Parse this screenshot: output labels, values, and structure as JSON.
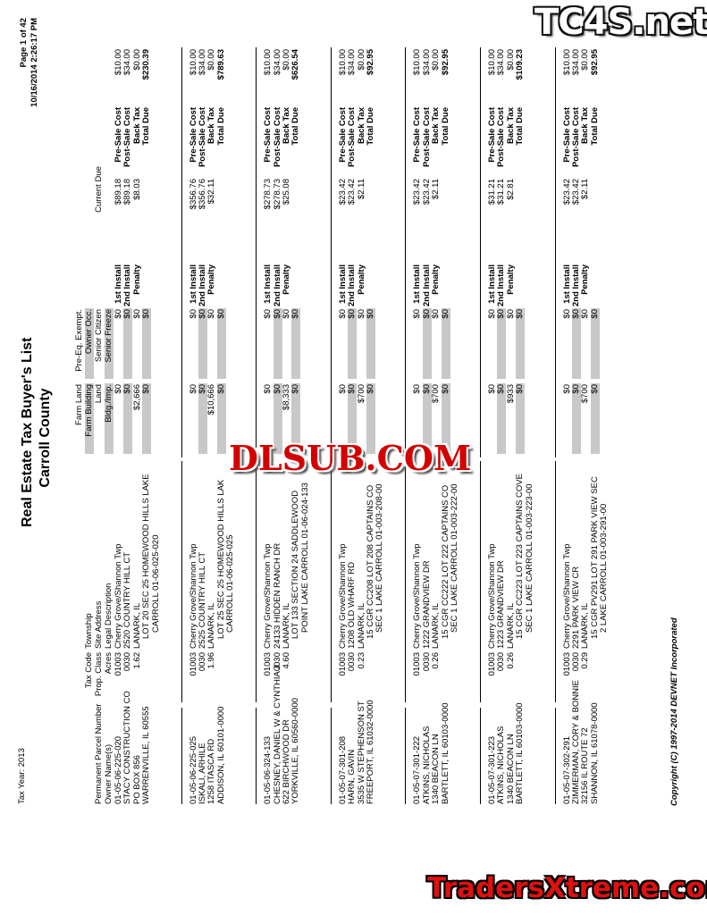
{
  "header": {
    "tax_year": "Tax Year: 2013",
    "title": "Real Estate Tax Buyer's List",
    "county": "Carroll County",
    "page": "Page 1 of 42",
    "timestamp": "10/16/2014 2:26:17 PM"
  },
  "columns": {
    "parcel": "Permanent Parcel Number",
    "owner": "Owner Name(s)",
    "tax_code": "Tax Code",
    "township": "Township",
    "prop_class": "Prop. Class",
    "site_address": "Site Address",
    "acres": "Acres",
    "legal": "Legal Description",
    "farm_land": "Farm Land",
    "farm_building": "Farm Building",
    "land": "Land",
    "bldg": "Bldg./Imp.",
    "pre_eq": "Pre-Eq. Exempt.",
    "owner_occ": "Owner Occ.",
    "senior_citizen": "Senior Citizen",
    "senior_freeze": "Senior Freeze",
    "current_due": "Current Due"
  },
  "labels": {
    "install1": "1st Install",
    "install2": "2nd Install",
    "penalty": "Penalty",
    "pre_sale": "Pre-Sale Cost",
    "post_sale": "Post-Sale Cost",
    "back_tax": "Back Tax",
    "total_due": "Total Due"
  },
  "records": [
    {
      "parcel": "01-05-06-225-020",
      "owner": [
        "STACY CONSTRUCTION CO",
        "PO BOX 856",
        "WARRENVILLE, IL 60555"
      ],
      "tax_code": "01003",
      "township": "Cherry Grove/Shannon Twp",
      "prop_class": "0030",
      "site_address": "2520 COUNTRY HILL CT",
      "acres": "1.62",
      "city": "LANARK, IL",
      "legal": [
        "LOT 20 SEC 25 HOMEWOOD HILLS LAKE",
        "CARROLL 01-06-025-020"
      ],
      "farm_land": "$0",
      "farm_building": "$0",
      "land": "$2,666",
      "bldg": "$0",
      "pre_eq": "$0",
      "owner_occ": "$0",
      "senior_citizen": "$0",
      "senior_freeze": "$0",
      "due": [
        "$89.18",
        "$89.18",
        "$8.03"
      ],
      "costs": [
        "$10.00",
        "$34.00",
        "$0.00"
      ],
      "total": "$230.39"
    },
    {
      "parcel": "01-05-06-225-025",
      "owner": [
        "ISKALI, ARHILE",
        "1258 ITASCA RD",
        "ADDISON, IL 60101-0000"
      ],
      "tax_code": "01003",
      "township": "Cherry Grove/Shannon Twp",
      "prop_class": "0030",
      "site_address": "2525 COUNTRY HILL CT",
      "acres": "1.96",
      "city": "LANARK, IL",
      "legal": [
        "LOT 25 SEC 25 HOMEWOOD HILLS LAK",
        "CARROLL 01-06-025-025"
      ],
      "farm_land": "$0",
      "farm_building": "$0",
      "land": "$10,666",
      "bldg": "$0",
      "pre_eq": "$0",
      "owner_occ": "$0",
      "senior_citizen": "$0",
      "senior_freeze": "$0",
      "due": [
        "$356.76",
        "$356.76",
        "$32.11"
      ],
      "costs": [
        "$10.00",
        "$34.00",
        "$0.00"
      ],
      "total": "$789.63"
    },
    {
      "parcel": "01-05-06-324-133",
      "owner": [
        "CHESNEY, DANIEL W & CYNTHIA J",
        "622 BIRCHWOOD DR",
        "YORKVILLE, IL 60560-0000"
      ],
      "tax_code": "01003",
      "township": "Cherry Grove/Shannon Twp",
      "prop_class": "0030",
      "site_address": "24133 HIDDEN RANCH DR",
      "acres": "4.60",
      "city": "LANARK, IL",
      "legal": [
        "LOT 133 SECTION 24 SADDLEWOOD",
        "POINT LAKE CARROLL 01-06-024-133"
      ],
      "farm_land": "$0",
      "farm_building": "$0",
      "land": "$8,333",
      "bldg": "$0",
      "pre_eq": "$0",
      "owner_occ": "$0",
      "senior_citizen": "$0",
      "senior_freeze": "$0",
      "due": [
        "$278.73",
        "$278.73",
        "$25.08"
      ],
      "costs": [
        "$10.00",
        "$34.00",
        "$0.00"
      ],
      "total": "$626.54"
    },
    {
      "parcel": "01-05-07-301-208",
      "owner": [
        "HARN, GAVIN",
        "3535 W STEPHENSON ST",
        "FREEPORT, IL 61032-0000"
      ],
      "tax_code": "01003",
      "township": "Cherry Grove/Shannon Twp",
      "prop_class": "0030",
      "site_address": "1208 OLD WHARF RD",
      "acres": "0.23",
      "city": "LANARK, IL",
      "legal": [
        "15 CGR CC208 LOT 208 CAPTAINS CO",
        "SEC 1 LAKE CARROLL 01-003-208-00"
      ],
      "farm_land": "$0",
      "farm_building": "$0",
      "land": "$700",
      "bldg": "$0",
      "pre_eq": "$0",
      "owner_occ": "$0",
      "senior_citizen": "$0",
      "senior_freeze": "$0",
      "due": [
        "$23.42",
        "$23.42",
        "$2.11"
      ],
      "costs": [
        "$10.00",
        "$34.00",
        "$0.00"
      ],
      "total": "$92.95"
    },
    {
      "parcel": "01-05-07-301-222",
      "owner": [
        "ATKINS, NICHOLAS",
        "1340 BEACON LN",
        "BARTLETT, IL 60103-0000"
      ],
      "tax_code": "01003",
      "township": "Cherry Grove/Shannon Twp",
      "prop_class": "0030",
      "site_address": "1222 GRANDVIEW DR",
      "acres": "0.26",
      "city": "LANARK, IL",
      "legal": [
        "15 CGR CC222 LOT 222 CAPTAINS CO",
        "SEC 1 LAKE CARROLL 01-003-222-00"
      ],
      "farm_land": "$0",
      "farm_building": "$0",
      "land": "$700",
      "bldg": "$0",
      "pre_eq": "$0",
      "owner_occ": "$0",
      "senior_citizen": "$0",
      "senior_freeze": "$0",
      "due": [
        "$23.42",
        "$23.42",
        "$2.11"
      ],
      "costs": [
        "$10.00",
        "$34.00",
        "$0.00"
      ],
      "total": "$92.95"
    },
    {
      "parcel": "01-05-07-301-223",
      "owner": [
        "ATKINS, NICHOLAS",
        "1340 BEACON LN",
        "BARTLETT, IL 60103-0000"
      ],
      "tax_code": "01003",
      "township": "Cherry Grove/Shannon Twp",
      "prop_class": "0030",
      "site_address": "1223 GRANDVIEW DR",
      "acres": "0.26",
      "city": "LANARK, IL",
      "legal": [
        "15 CGR CC223 LOT 223 CAPTAINS COVE",
        "SEC 1 LAKE CARROLL 01-003-223-00"
      ],
      "farm_land": "$0",
      "farm_building": "$0",
      "land": "$933",
      "bldg": "$0",
      "pre_eq": "$0",
      "owner_occ": "$0",
      "senior_citizen": "$0",
      "senior_freeze": "$0",
      "due": [
        "$31.21",
        "$31.21",
        "$2.81"
      ],
      "costs": [
        "$10.00",
        "$34.00",
        "$0.00"
      ],
      "total": "$109.23"
    },
    {
      "parcel": "01-05-07-302-291",
      "owner": [
        "ZIMMERMAN, CORY & BONNIE",
        "32156 IL ROUTE 72",
        "SHANNON, IL 61078-0000"
      ],
      "tax_code": "01003",
      "township": "Cherry Grove/Shannon Twp",
      "prop_class": "0030",
      "site_address": "2291 PARK VIEW CR",
      "acres": "0.29",
      "city": "LANARK, IL",
      "legal": [
        "15 CGR PV291 LOT 291 PARK VIEW SEC",
        "2 LAKE CARROLL 01-003-291-00"
      ],
      "farm_land": "$0",
      "farm_building": "$0",
      "land": "$700",
      "bldg": "$0",
      "pre_eq": "$0",
      "owner_occ": "$0",
      "senior_citizen": "$0",
      "senior_freeze": "$0",
      "due": [
        "$23.42",
        "$23.42",
        "$2.11"
      ],
      "costs": [
        "$10.00",
        "$34.00",
        "$0.00"
      ],
      "total": "$92.95"
    }
  ],
  "footer": {
    "copyright": "Copyright (C) 1997-2014 DEVNET Incorporated"
  },
  "watermarks": {
    "top": "TC4S.net",
    "middle": "DLSUB.COM",
    "bottom": "TradersXtreme.com"
  }
}
